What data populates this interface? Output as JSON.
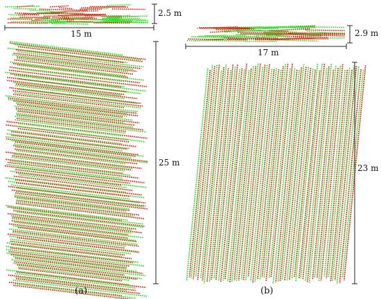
{
  "colors": {
    "red_points": "#e8150f",
    "green_points": "#19e619",
    "dimension_line": "#222222"
  },
  "panel_a": {
    "label": "(a)",
    "top_view_height": "2.5 m",
    "width": "15 m",
    "length": "25 m"
  },
  "panel_b": {
    "label": "(b)",
    "top_view_height": "2.9 m",
    "width": "17 m",
    "length": "23 m"
  }
}
